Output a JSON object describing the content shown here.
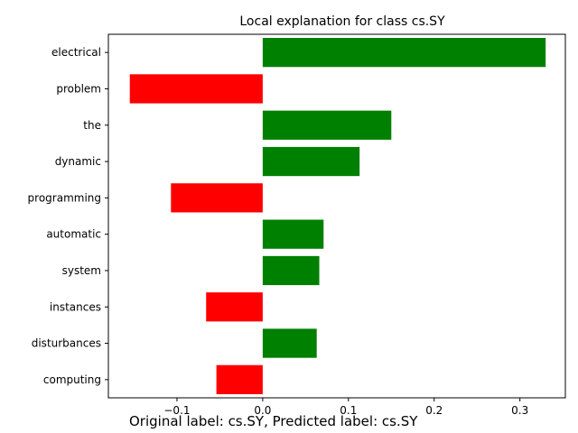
{
  "chart_data": {
    "type": "bar",
    "orientation": "horizontal",
    "title": "Local explanation for class cs.SY",
    "xlabel": "",
    "ylabel": "",
    "categories": [
      "electrical",
      "problem",
      "the",
      "dynamic",
      "programming",
      "automatic",
      "system",
      "instances",
      "disturbances",
      "computing"
    ],
    "values": [
      0.33,
      -0.155,
      0.15,
      0.113,
      -0.107,
      0.071,
      0.066,
      -0.066,
      0.063,
      -0.054
    ],
    "xlim": [
      -0.18,
      0.353
    ],
    "xticks": [
      -0.1,
      0.0,
      0.1,
      0.2,
      0.3
    ],
    "xtick_labels": [
      "−0.1",
      "0.0",
      "0.1",
      "0.2",
      "0.3"
    ],
    "grid": false,
    "colors": {
      "positive": "#008000",
      "negative": "#ff0000"
    }
  },
  "caption": "Original label: cs.SY, Predicted label: cs.SY"
}
